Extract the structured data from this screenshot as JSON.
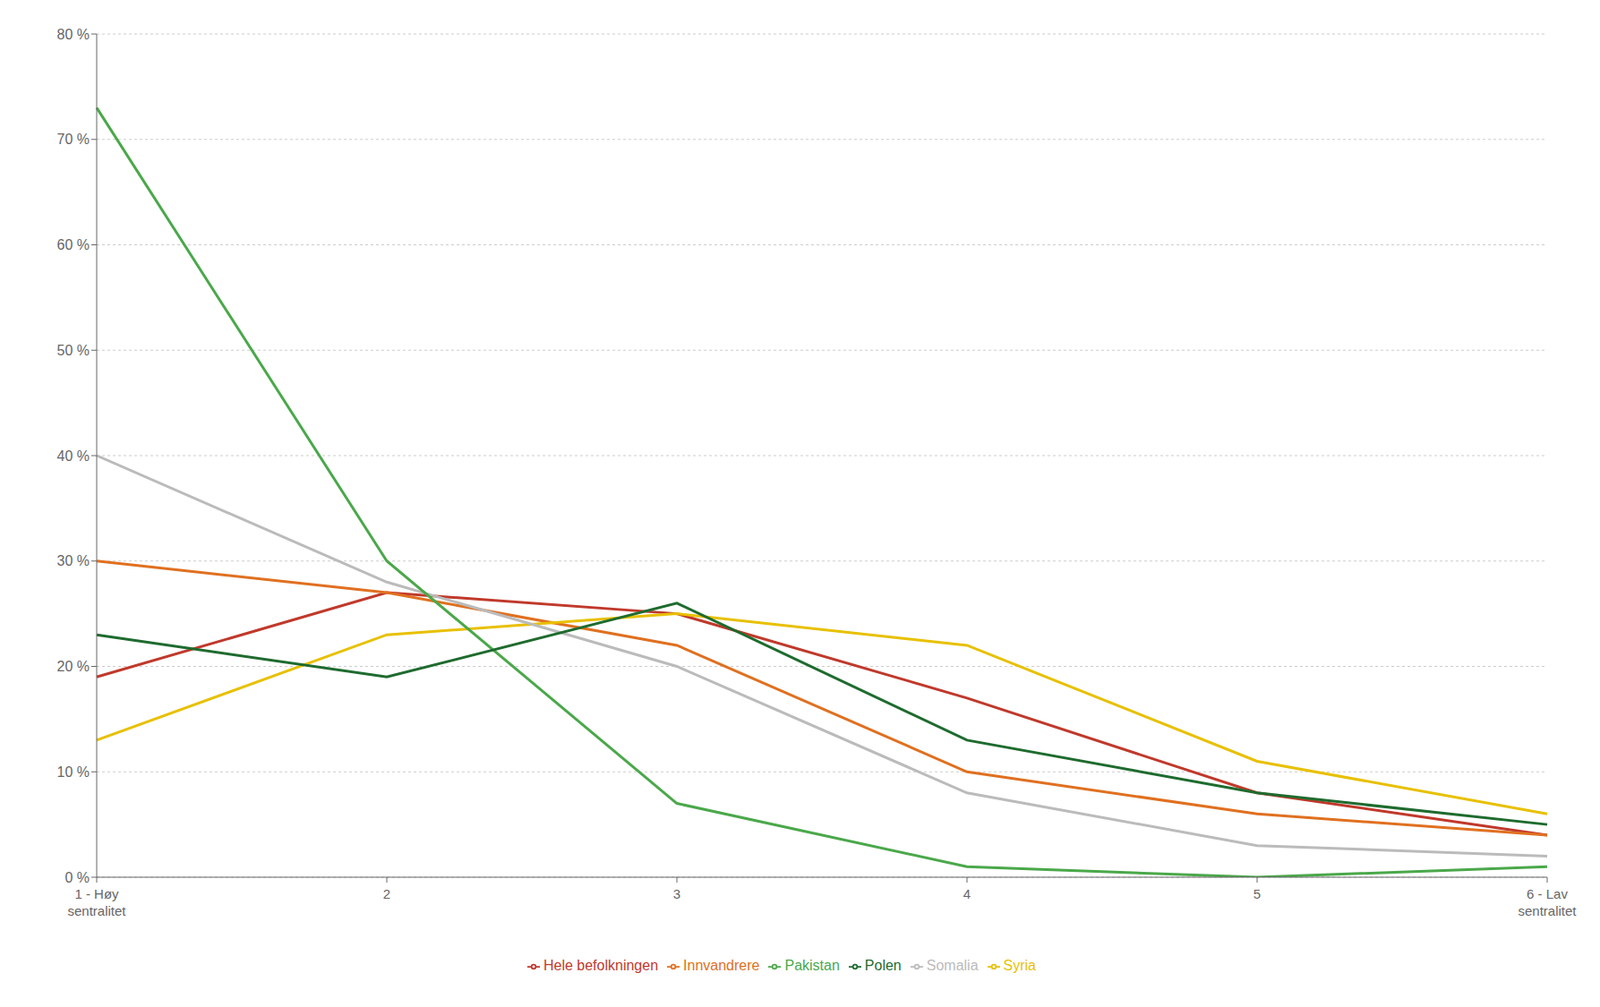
{
  "chart_data": {
    "type": "line",
    "categories": [
      "1 - Høy\nsentralitet",
      "2",
      "3",
      "4",
      "5",
      "6 - Lav\nsentralitet"
    ],
    "series": [
      {
        "name": "Hele befolkningen",
        "color": "#C0392B",
        "values": [
          19,
          27,
          25,
          17,
          8,
          4
        ]
      },
      {
        "name": "Innvandrere",
        "color": "#E07020",
        "values": [
          30,
          27,
          22,
          10,
          6,
          4
        ]
      },
      {
        "name": "Syria",
        "color": "#E8C000",
        "values": [
          13,
          23,
          25,
          22,
          11,
          6
        ]
      },
      {
        "name": "Somalia",
        "color": "#BBBBBB",
        "values": [
          40,
          28,
          20,
          8,
          3,
          2
        ]
      },
      {
        "name": "Pakistan",
        "color": "#4AA84A",
        "values": [
          73,
          30,
          7,
          1,
          0,
          1
        ]
      },
      {
        "name": "Polen",
        "color": "#1E6B2E",
        "values": [
          23,
          19,
          26,
          13,
          8,
          5
        ]
      }
    ],
    "ylim": [
      0,
      80
    ],
    "yticks": [
      {
        "value": 0,
        "label": "0 %"
      },
      {
        "value": 10,
        "label": "10 %"
      },
      {
        "value": 20,
        "label": "20 %"
      },
      {
        "value": 30,
        "label": "30 %"
      },
      {
        "value": 40,
        "label": "40 %"
      },
      {
        "value": 50,
        "label": "50 %"
      },
      {
        "value": 60,
        "label": "60 %"
      },
      {
        "value": 70,
        "label": "70 %"
      },
      {
        "value": 80,
        "label": "80 %"
      }
    ],
    "grid": true,
    "legend": "bottom"
  }
}
